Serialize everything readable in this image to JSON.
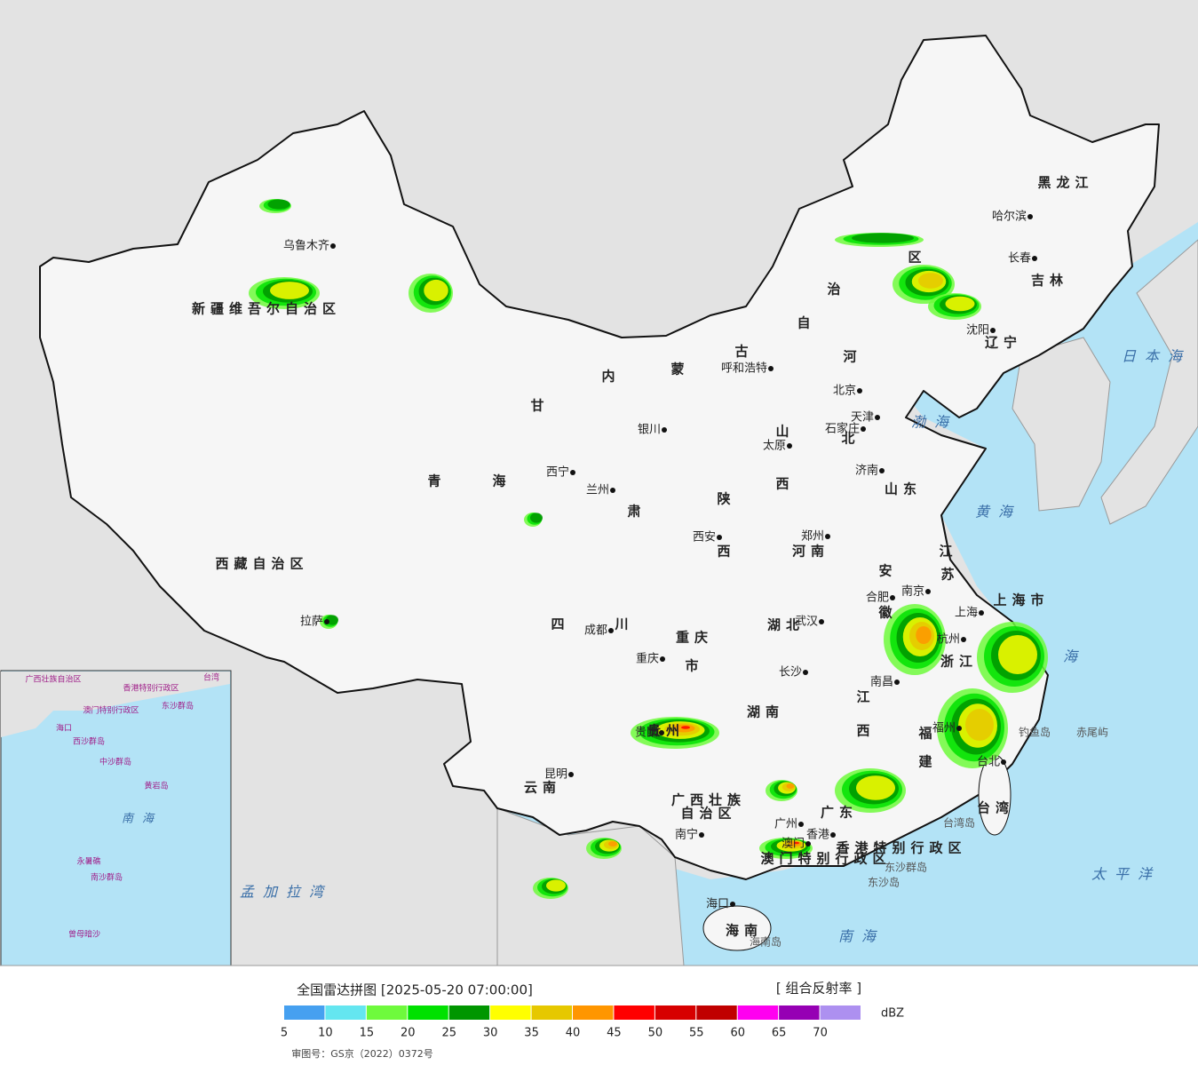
{
  "title": "全国雷达拼图 [2025-05-20 07:00:00]",
  "product": "[ 组合反射率 ]",
  "review_number": "审图号：GS京（2022）0372号",
  "legend": {
    "unit": "dBZ",
    "ticks": [
      5,
      10,
      15,
      20,
      25,
      30,
      35,
      40,
      45,
      50,
      55,
      60,
      65,
      70
    ],
    "colors": [
      "#46a0f0",
      "#64e6f0",
      "#6efa3c",
      "#00e100",
      "#009600",
      "#ffff00",
      "#e6c800",
      "#ff9600",
      "#ff0000",
      "#d70000",
      "#c00000",
      "#ff00f0",
      "#9600b4",
      "#ad90f0"
    ]
  },
  "regions": [
    "新疆维吾尔自治区",
    "西藏自治区",
    "青",
    "海",
    "甘",
    "肃",
    "内",
    "蒙",
    "古",
    "自",
    "治",
    "区",
    "黑龙江",
    "吉林",
    "辽宁",
    "河",
    "北",
    "山",
    "西",
    "山东",
    "陕",
    "西",
    "河南",
    "江",
    "苏",
    "安",
    "徽",
    "上海市",
    "浙江",
    "四",
    "川",
    "重庆",
    "市",
    "湖北",
    "湖南",
    "江",
    "西",
    "福",
    "建",
    "贵州",
    "云南",
    "广西壮族",
    "自治区",
    "广东",
    "台湾",
    "海南",
    "香港特别行政区",
    "澳门特别行政区"
  ],
  "cities": [
    "乌鲁木齐",
    "拉萨",
    "西宁",
    "兰州",
    "银川",
    "呼和浩特",
    "北京",
    "天津",
    "石家庄",
    "太原",
    "济南",
    "郑州",
    "西安",
    "合肥",
    "南京",
    "上海",
    "杭州",
    "武汉",
    "成都",
    "重庆",
    "长沙",
    "南昌",
    "福州",
    "贵阳",
    "昆明",
    "南宁",
    "广州",
    "香港",
    "澳门",
    "海口",
    "台北",
    "哈尔滨",
    "长春",
    "沈阳"
  ],
  "places": [
    "钓鱼岛",
    "赤尾屿",
    "东沙群岛",
    "东沙岛",
    "台湾岛",
    "海南岛"
  ],
  "seas": [
    "日本海",
    "渤海",
    "黄海",
    "海",
    "太平洋",
    "南海",
    "孟加拉湾"
  ],
  "inset_labels": [
    "广西壮族自治区",
    "台湾",
    "香港特别行政区",
    "澳门特别行政区",
    "东沙群岛",
    "海口",
    "西沙群岛",
    "中沙群岛",
    "黄岩岛",
    "南海",
    "永暑礁",
    "南沙群岛",
    "曾母暗沙"
  ]
}
